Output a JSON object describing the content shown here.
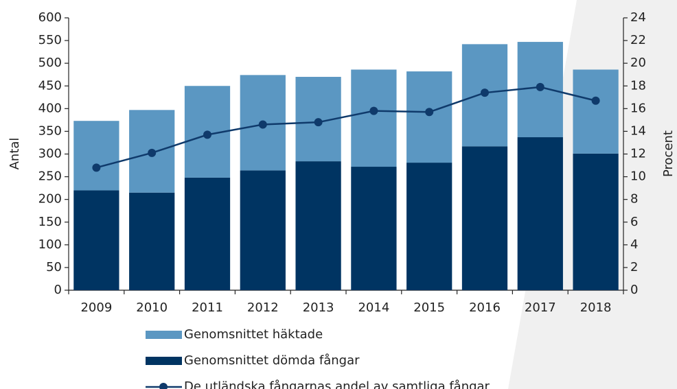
{
  "chart_data": {
    "type": "bar",
    "categories": [
      "2009",
      "2010",
      "2011",
      "2012",
      "2013",
      "2014",
      "2015",
      "2016",
      "2017",
      "2018"
    ],
    "series": [
      {
        "name": "Genomsnittet häktade",
        "color": "#5b97c2",
        "values": [
          153,
          182,
          202,
          210,
          186,
          214,
          201,
          225,
          210,
          185
        ]
      },
      {
        "name": "Genomsnittet dömda fångar",
        "color": "#003462",
        "values": [
          220,
          215,
          248,
          264,
          284,
          272,
          281,
          317,
          337,
          301
        ]
      },
      {
        "name": "De utländska fångarnas andel av samtliga fångar",
        "color": "#0f3a6b",
        "type": "line",
        "axis": "y2",
        "values": [
          10.8,
          12.1,
          13.7,
          14.6,
          14.8,
          15.8,
          15.7,
          17.4,
          17.9,
          16.7
        ]
      }
    ],
    "stacked": true,
    "ylabel": "Antal",
    "y2label": "Procent",
    "ylim": [
      0,
      600
    ],
    "yticks": [
      0,
      50,
      100,
      150,
      200,
      250,
      300,
      350,
      400,
      450,
      500,
      550,
      600
    ],
    "y2lim": [
      0,
      24
    ],
    "y2ticks": [
      0,
      2,
      4,
      6,
      8,
      10,
      12,
      14,
      16,
      18,
      20,
      22,
      24
    ],
    "grid": false,
    "legend": "bottom"
  }
}
